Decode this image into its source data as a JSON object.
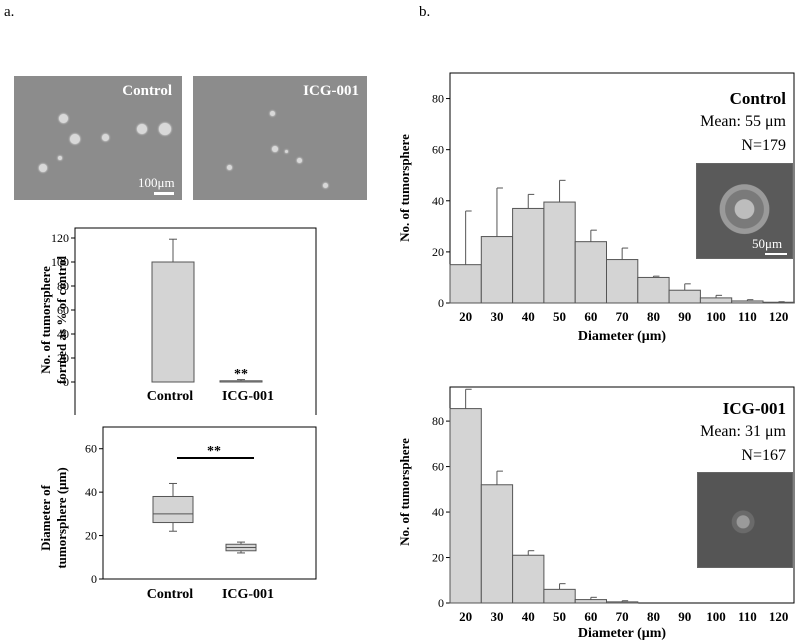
{
  "panels": {
    "a": "a.",
    "b": "b."
  },
  "photos": {
    "control_label": "Control",
    "icg_label": "ICG-001",
    "scale_label": "100μm"
  },
  "colors": {
    "bar_fill": "#d4d4d4",
    "bar_stroke": "#555555",
    "photo_bg": "#8c8c8c"
  },
  "chart_data": [
    {
      "id": "a-bar",
      "type": "bar",
      "categories": [
        "Control",
        "ICG-001"
      ],
      "values": [
        100,
        1
      ],
      "errors": [
        19,
        1
      ],
      "ylabel_line1": "No. of tumorsphere",
      "ylabel_line2": "formed as % of control",
      "ylim": [
        0,
        120
      ],
      "yticks": [
        0,
        20,
        40,
        60,
        80,
        100,
        120
      ],
      "annotation": "**"
    },
    {
      "id": "a-box",
      "type": "box",
      "categories": [
        "Control",
        "ICG-001"
      ],
      "boxes": [
        {
          "min": 22,
          "q1": 26,
          "median": 30,
          "q3": 38,
          "max": 44
        },
        {
          "min": 12,
          "q1": 13,
          "median": 14.5,
          "q3": 16,
          "max": 17
        }
      ],
      "ylabel_line1": "Diameter of",
      "ylabel_line2": "tumorsphere (μm)",
      "ylim": [
        0,
        70
      ],
      "yticks": [
        0,
        20,
        40,
        60
      ],
      "annotation": "**"
    },
    {
      "id": "b-control",
      "type": "bar",
      "title": "Control",
      "mean_text": "Mean: 55 μm",
      "n_text": "N=179",
      "inset_scale": "50μm",
      "categories": [
        "20",
        "30",
        "40",
        "50",
        "60",
        "70",
        "80",
        "90",
        "100",
        "110",
        "120"
      ],
      "values": [
        15,
        26,
        37,
        39.5,
        24,
        17,
        10,
        5,
        2,
        0.8,
        0.3
      ],
      "errors": [
        21,
        19,
        5.5,
        8.5,
        4.5,
        4.5,
        0.5,
        2.5,
        1,
        0.5,
        0.2
      ],
      "xlabel": "Diameter (μm)",
      "ylabel": "No. of tumorsphere",
      "ylim": [
        0,
        90
      ],
      "yticks": [
        0,
        20,
        40,
        60,
        80
      ]
    },
    {
      "id": "b-icg",
      "type": "bar",
      "title": "ICG-001",
      "mean_text": "Mean: 31 μm",
      "n_text": "N=167",
      "categories": [
        "20",
        "30",
        "40",
        "50",
        "60",
        "70",
        "80",
        "90",
        "100",
        "110",
        "120"
      ],
      "values": [
        85.5,
        52,
        21,
        6,
        1.5,
        0.5,
        0,
        0,
        0,
        0,
        0
      ],
      "errors": [
        8.5,
        6,
        2,
        2.5,
        1,
        0.5,
        0,
        0,
        0,
        0,
        0
      ],
      "xlabel": "Diameter (μm)",
      "ylabel": "No. of tumorsphere",
      "ylim": [
        0,
        95
      ],
      "yticks": [
        0,
        20,
        40,
        60,
        80
      ]
    }
  ]
}
